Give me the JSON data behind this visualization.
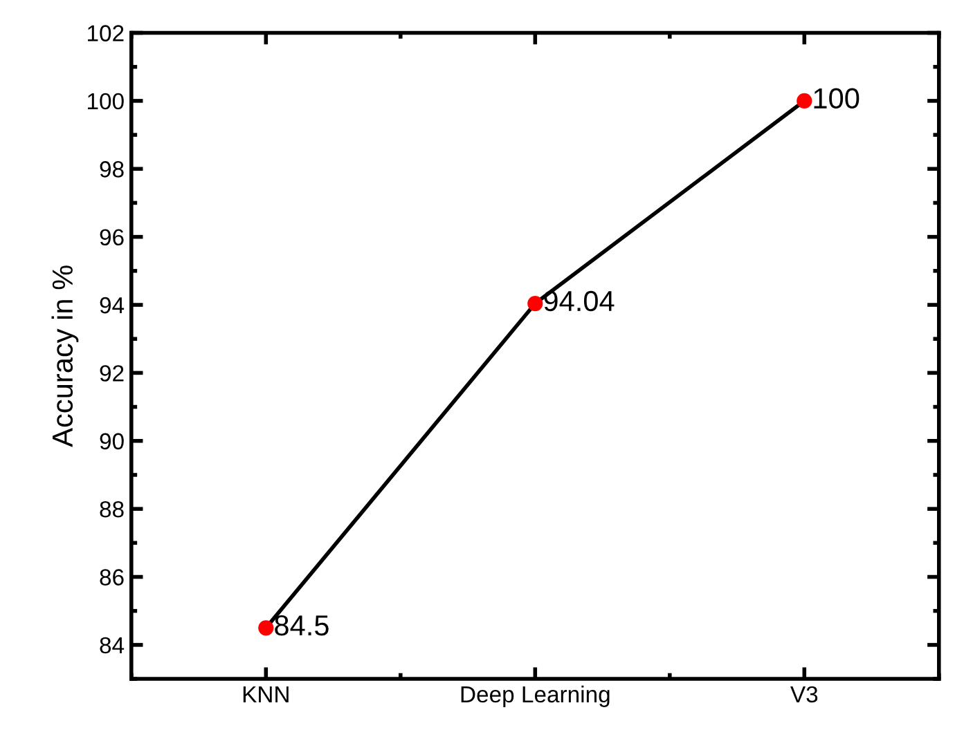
{
  "chart_data": {
    "type": "line",
    "ylabel": "Accuracy in %",
    "categories": [
      "KNN",
      "Deep Learning",
      "V3"
    ],
    "series": [
      {
        "color": "#000000",
        "colors": [
          "#ff0000",
          "#ff0000",
          "#ff0000"
        ],
        "values": [
          84.5,
          94.04,
          100
        ]
      }
    ],
    "ylim": [
      83,
      102
    ],
    "yticks": [
      84,
      86,
      88,
      90,
      92,
      94,
      96,
      98,
      100,
      102
    ],
    "marker": "circle",
    "line_style": "solid",
    "grid": false,
    "legend": false,
    "data_labels": true
  }
}
